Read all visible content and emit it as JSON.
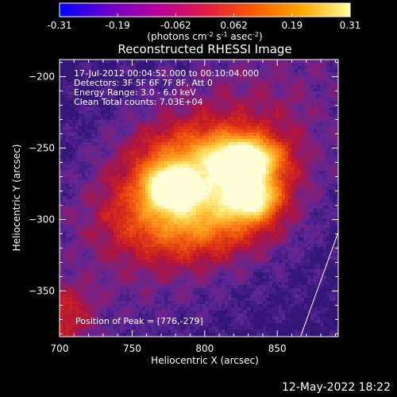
{
  "chart_data": {
    "type": "heatmap",
    "title": "Reconstructed RHESSI Image",
    "xlabel": "Heliocentric X (arcsec)",
    "ylabel": "Heliocentric Y (arcsec)",
    "xlim": [
      700,
      892
    ],
    "ylim": [
      -382,
      -188
    ],
    "x_ticks": [
      700,
      750,
      800,
      850
    ],
    "y_ticks": [
      -200,
      -250,
      -300,
      -350
    ],
    "colorbar": {
      "min": -0.31,
      "max": 0.31,
      "ticks": [
        "-0.31",
        "-0.19",
        "-0.062",
        "0.062",
        "0.19",
        "0.31"
      ],
      "unit_parts": [
        "(photons cm",
        "-2",
        " s",
        "-1",
        " asec",
        "-2",
        ")"
      ],
      "colors": [
        "#0000ff",
        "#6a00c8",
        "#b4009b",
        "#e01a48",
        "#ff5a00",
        "#ffa800",
        "#ffff99"
      ]
    },
    "info_lines": [
      "17-Jul-2012 00:04:52.000 to 00:10:04.000",
      "Detectors: 3F 5F 6F 7F 8F, Att 0",
      "Energy Range: 3.0 - 6.0 keV",
      "Clean     Total counts: 7.03E+04"
    ],
    "peak_label": "Position of Peak = [776,-279]",
    "peak": {
      "x": 776,
      "y": -279
    },
    "sources": [
      {
        "x": 776,
        "y": -278,
        "sx": 10,
        "sy": 9,
        "amp": 1.0
      },
      {
        "x": 828,
        "y": -258,
        "sx": 15,
        "sy": 10,
        "amp": 0.84
      },
      {
        "x": 832,
        "y": -285,
        "sx": 12,
        "sy": 10,
        "amp": 0.74
      },
      {
        "x": 800,
        "y": -266,
        "sx": 32,
        "sy": 20,
        "amp": 0.55
      },
      {
        "x": 790,
        "y": -300,
        "sx": 36,
        "sy": 18,
        "amp": 0.42
      }
    ],
    "limb_line": {
      "x1": 892,
      "y1": -309,
      "x2": 866,
      "y2": -382
    }
  },
  "footer": {
    "date_stamp": "12-May-2022 18:22"
  }
}
